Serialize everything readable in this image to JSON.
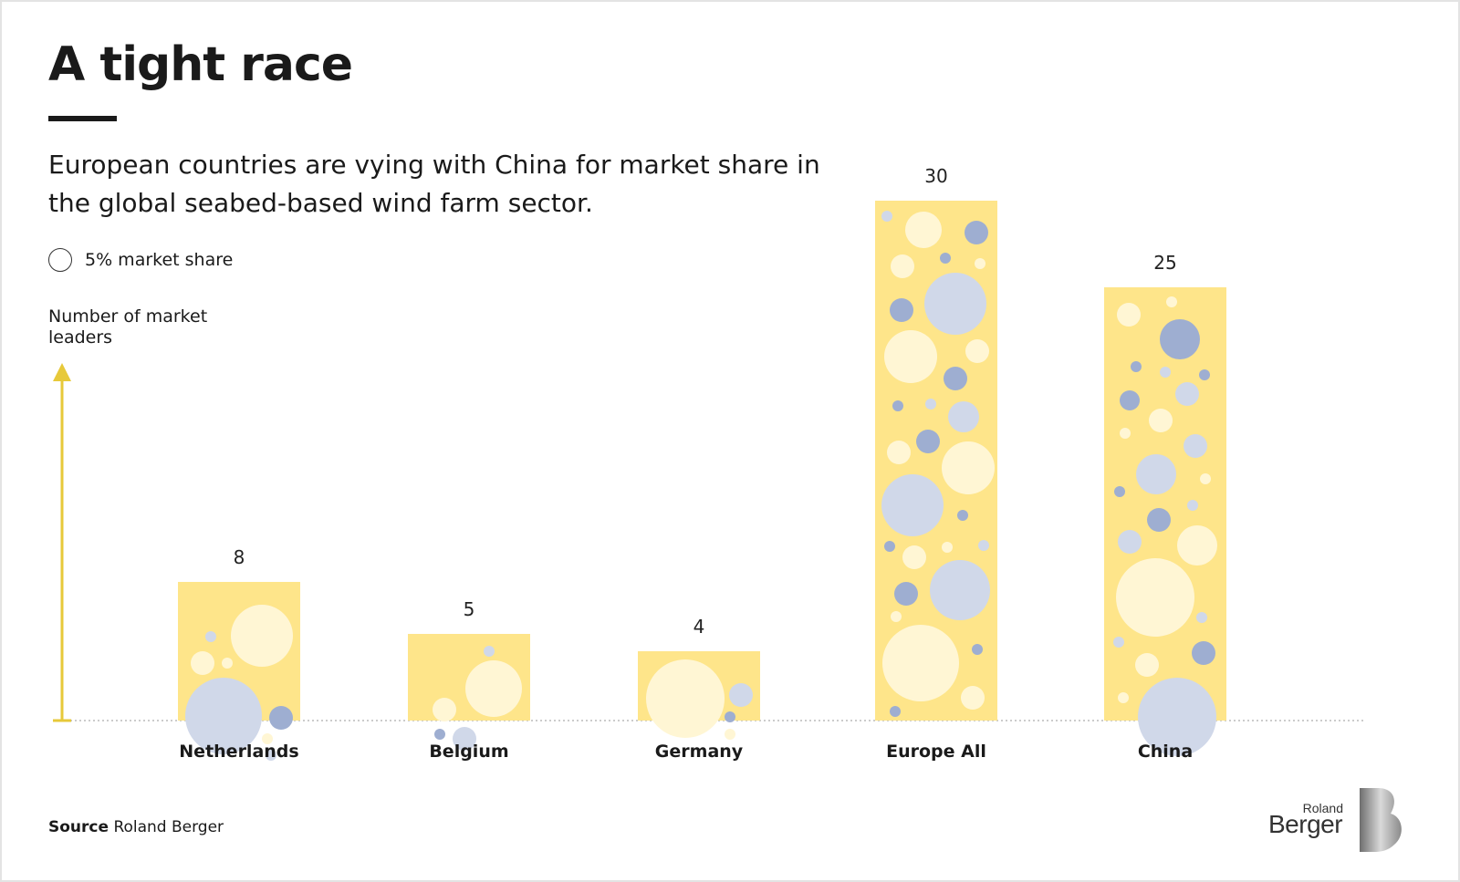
{
  "page": {
    "title": "A tight race",
    "subtitle": "European countries are vying with China for market share in the global seabed-based wind farm sector.",
    "legend_label": "5% market share",
    "y_axis_label": "Number of market leaders",
    "source_prefix": "Source",
    "source_text": "Roland Berger",
    "logo_small": "Roland",
    "logo_big": "Berger"
  },
  "colors": {
    "bar": "#fee58a",
    "bubble_light": "#fff6d4",
    "bubble_pale_blue": "#d0d8e9",
    "bubble_blue": "#9eaed1",
    "axis": "#e7c93a"
  },
  "chart_data": {
    "type": "bar",
    "categories": [
      "Netherlands",
      "Belgium",
      "Germany",
      "Europe All",
      "China"
    ],
    "values": [
      8,
      5,
      4,
      30,
      25
    ],
    "ylabel": "Number of market leaders",
    "ylim": [
      0,
      30
    ]
  }
}
